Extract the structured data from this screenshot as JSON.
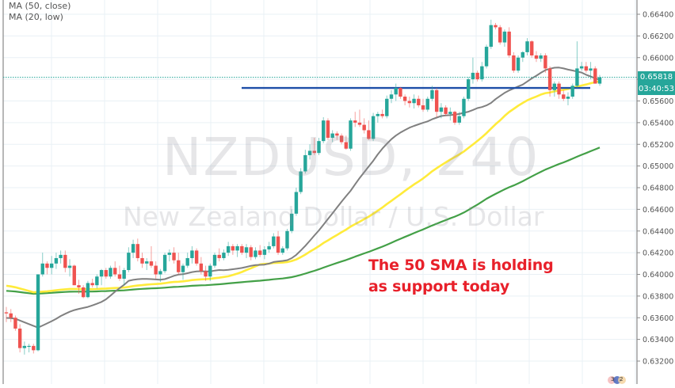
{
  "legend": {
    "ma50": "MA (50, close)",
    "ma20": "MA (20, low)"
  },
  "watermark": {
    "symbol": "NZDUSD, 240",
    "description": "New Zealand Dollar / U.S. Dollar"
  },
  "annotation": {
    "line1": "The 50 SMA is holding",
    "line2": "as support today"
  },
  "price_scale": {
    "last_price": "0.65818",
    "countdown": "03:40:53"
  },
  "colors": {
    "up": "#26a69a",
    "down": "#ef5350",
    "ma50": "#ffeb3b",
    "ma20": "#808080",
    "ma100": "#43a047",
    "support_line": "#1e4fa8",
    "grid": "#e9f0f5",
    "last_price_line": "#26a69a",
    "annotation": "#e8202a"
  },
  "chart_data": {
    "type": "candlestick",
    "title": "NZDUSD, 240",
    "subtitle": "New Zealand Dollar / U.S. Dollar",
    "xlabel": "",
    "ylabel": "",
    "ylim": [
      0.631,
      0.665
    ],
    "y_ticks": [
      "0.66400",
      "0.66200",
      "0.66000",
      "0.65800",
      "0.65600",
      "0.65400",
      "0.65200",
      "0.65000",
      "0.64800",
      "0.64600",
      "0.64400",
      "0.64200",
      "0.64000",
      "0.63800",
      "0.63600",
      "0.63400",
      "0.63200"
    ],
    "grid": true,
    "last_price": 0.65818,
    "support_level": 0.6572,
    "legend": [
      "MA (50, close)",
      "MA (20, low)"
    ],
    "annotation": "The 50 SMA is holding as support today",
    "ohlc": [
      [
        0.6365,
        0.637,
        0.6356,
        0.6364
      ],
      [
        0.6364,
        0.6368,
        0.6356,
        0.636
      ],
      [
        0.636,
        0.6362,
        0.6348,
        0.635
      ],
      [
        0.635,
        0.6354,
        0.6328,
        0.6332
      ],
      [
        0.6332,
        0.6338,
        0.6326,
        0.6334
      ],
      [
        0.6334,
        0.6336,
        0.6328,
        0.6334
      ],
      [
        0.6334,
        0.6336,
        0.6327,
        0.633
      ],
      [
        0.633,
        0.634,
        0.6329,
        0.64
      ],
      [
        0.64,
        0.642,
        0.6398,
        0.641
      ],
      [
        0.641,
        0.6412,
        0.64,
        0.6406
      ],
      [
        0.6406,
        0.6417,
        0.64,
        0.641
      ],
      [
        0.641,
        0.642,
        0.6405,
        0.6415
      ],
      [
        0.6415,
        0.6422,
        0.641,
        0.6418
      ],
      [
        0.6418,
        0.6422,
        0.6402,
        0.6406
      ],
      [
        0.6406,
        0.6414,
        0.6398,
        0.6408
      ],
      [
        0.6408,
        0.6409,
        0.639,
        0.639
      ],
      [
        0.639,
        0.6395,
        0.6382,
        0.6388
      ],
      [
        0.6388,
        0.639,
        0.6378,
        0.6379
      ],
      [
        0.6379,
        0.6394,
        0.6378,
        0.6392
      ],
      [
        0.6392,
        0.6396,
        0.6388,
        0.639
      ],
      [
        0.639,
        0.64,
        0.6387,
        0.6398
      ],
      [
        0.6398,
        0.6405,
        0.639,
        0.6404
      ],
      [
        0.6404,
        0.6406,
        0.6396,
        0.6398
      ],
      [
        0.6398,
        0.6408,
        0.6396,
        0.6406
      ],
      [
        0.6406,
        0.6412,
        0.6398,
        0.64
      ],
      [
        0.64,
        0.6408,
        0.6394,
        0.6396
      ],
      [
        0.6396,
        0.6406,
        0.639,
        0.6404
      ],
      [
        0.6404,
        0.6425,
        0.6402,
        0.642
      ],
      [
        0.642,
        0.6432,
        0.6415,
        0.6428
      ],
      [
        0.6428,
        0.6433,
        0.6412,
        0.6415
      ],
      [
        0.6415,
        0.642,
        0.6406,
        0.641
      ],
      [
        0.641,
        0.6415,
        0.6404,
        0.6412
      ],
      [
        0.6412,
        0.6426,
        0.6406,
        0.6408
      ],
      [
        0.6408,
        0.6412,
        0.6396,
        0.64
      ],
      [
        0.64,
        0.6405,
        0.6393,
        0.6403
      ],
      [
        0.6403,
        0.642,
        0.6401,
        0.6418
      ],
      [
        0.6418,
        0.6423,
        0.6412,
        0.642
      ],
      [
        0.642,
        0.6425,
        0.641,
        0.6413
      ],
      [
        0.6413,
        0.642,
        0.64,
        0.6402
      ],
      [
        0.6402,
        0.641,
        0.6395,
        0.6408
      ],
      [
        0.6408,
        0.642,
        0.6406,
        0.6415
      ],
      [
        0.6415,
        0.6426,
        0.641,
        0.6422
      ],
      [
        0.6422,
        0.6424,
        0.6408,
        0.641
      ],
      [
        0.641,
        0.6416,
        0.64,
        0.6403
      ],
      [
        0.6403,
        0.6408,
        0.6394,
        0.6398
      ],
      [
        0.6398,
        0.641,
        0.6394,
        0.6408
      ],
      [
        0.6408,
        0.642,
        0.6406,
        0.6418
      ],
      [
        0.6418,
        0.6424,
        0.6412,
        0.6415
      ],
      [
        0.6415,
        0.6423,
        0.6413,
        0.642
      ],
      [
        0.642,
        0.643,
        0.6417,
        0.6426
      ],
      [
        0.6426,
        0.6428,
        0.6418,
        0.6422
      ],
      [
        0.6422,
        0.6428,
        0.6416,
        0.6426
      ],
      [
        0.6426,
        0.6428,
        0.6418,
        0.642
      ],
      [
        0.642,
        0.6428,
        0.6415,
        0.6425
      ],
      [
        0.6425,
        0.6427,
        0.6413,
        0.6416
      ],
      [
        0.6416,
        0.6425,
        0.6414,
        0.6422
      ],
      [
        0.6422,
        0.6427,
        0.6416,
        0.6418
      ],
      [
        0.6418,
        0.6426,
        0.6414,
        0.6423
      ],
      [
        0.6423,
        0.643,
        0.642,
        0.6426
      ],
      [
        0.6426,
        0.6438,
        0.6424,
        0.6435
      ],
      [
        0.6435,
        0.644,
        0.6418,
        0.642
      ],
      [
        0.642,
        0.6426,
        0.6418,
        0.6424
      ],
      [
        0.6424,
        0.6442,
        0.6422,
        0.644
      ],
      [
        0.644,
        0.646,
        0.6438,
        0.6456
      ],
      [
        0.6456,
        0.648,
        0.6454,
        0.6476
      ],
      [
        0.6476,
        0.6498,
        0.6474,
        0.6495
      ],
      [
        0.6495,
        0.6515,
        0.6493,
        0.651
      ],
      [
        0.651,
        0.652,
        0.6506,
        0.6514
      ],
      [
        0.6514,
        0.6526,
        0.651,
        0.6512
      ],
      [
        0.6512,
        0.6526,
        0.651,
        0.6523
      ],
      [
        0.6523,
        0.6545,
        0.6521,
        0.6542
      ],
      [
        0.6542,
        0.6544,
        0.6524,
        0.6526
      ],
      [
        0.6526,
        0.6533,
        0.6522,
        0.653
      ],
      [
        0.653,
        0.6532,
        0.6524,
        0.6528
      ],
      [
        0.6528,
        0.653,
        0.652,
        0.6522
      ],
      [
        0.6522,
        0.6528,
        0.6515,
        0.6516
      ],
      [
        0.6516,
        0.6544,
        0.6514,
        0.6542
      ],
      [
        0.6542,
        0.655,
        0.6536,
        0.654
      ],
      [
        0.654,
        0.6552,
        0.6536,
        0.6538
      ],
      [
        0.6538,
        0.6544,
        0.653,
        0.6533
      ],
      [
        0.6533,
        0.6542,
        0.6524,
        0.6525
      ],
      [
        0.6525,
        0.6549,
        0.6523,
        0.6546
      ],
      [
        0.6546,
        0.655,
        0.654,
        0.6548
      ],
      [
        0.6548,
        0.6552,
        0.6544,
        0.6546
      ],
      [
        0.6546,
        0.6565,
        0.6544,
        0.6562
      ],
      [
        0.6562,
        0.657,
        0.6558,
        0.6566
      ],
      [
        0.6566,
        0.6576,
        0.656,
        0.6572
      ],
      [
        0.6572,
        0.6573,
        0.6562,
        0.6564
      ],
      [
        0.6564,
        0.6566,
        0.6556,
        0.656
      ],
      [
        0.656,
        0.6564,
        0.6554,
        0.6558
      ],
      [
        0.6558,
        0.6566,
        0.6553,
        0.6562
      ],
      [
        0.6562,
        0.6565,
        0.6554,
        0.6556
      ],
      [
        0.6556,
        0.6562,
        0.655,
        0.6552
      ],
      [
        0.6552,
        0.6564,
        0.655,
        0.6562
      ],
      [
        0.6562,
        0.6574,
        0.656,
        0.657
      ],
      [
        0.657,
        0.6572,
        0.6545,
        0.655
      ],
      [
        0.655,
        0.6558,
        0.6544,
        0.6554
      ],
      [
        0.6554,
        0.6556,
        0.6546,
        0.6548
      ],
      [
        0.6548,
        0.6554,
        0.6542,
        0.655
      ],
      [
        0.655,
        0.6551,
        0.6538,
        0.654
      ],
      [
        0.654,
        0.655,
        0.6538,
        0.6546
      ],
      [
        0.6546,
        0.6564,
        0.6544,
        0.6562
      ],
      [
        0.6562,
        0.6582,
        0.656,
        0.658
      ],
      [
        0.658,
        0.66,
        0.6576,
        0.6586
      ],
      [
        0.6586,
        0.6588,
        0.6578,
        0.658
      ],
      [
        0.658,
        0.6596,
        0.6578,
        0.6592
      ],
      [
        0.6592,
        0.6612,
        0.659,
        0.661
      ],
      [
        0.661,
        0.6635,
        0.6608,
        0.663
      ],
      [
        0.663,
        0.6632,
        0.6626,
        0.6628
      ],
      [
        0.6628,
        0.663,
        0.6612,
        0.6614
      ],
      [
        0.6614,
        0.6626,
        0.661,
        0.6624
      ],
      [
        0.6624,
        0.6628,
        0.66,
        0.6602
      ],
      [
        0.6602,
        0.6605,
        0.6586,
        0.6588
      ],
      [
        0.6588,
        0.6602,
        0.6586,
        0.66
      ],
      [
        0.66,
        0.6606,
        0.6596,
        0.6605
      ],
      [
        0.6605,
        0.6618,
        0.6602,
        0.6615
      ],
      [
        0.6615,
        0.6616,
        0.66,
        0.6602
      ],
      [
        0.6602,
        0.6606,
        0.6596,
        0.6599
      ],
      [
        0.6599,
        0.6604,
        0.6596,
        0.6602
      ],
      [
        0.6602,
        0.6604,
        0.6586,
        0.659
      ],
      [
        0.659,
        0.6592,
        0.6564,
        0.657
      ],
      [
        0.657,
        0.6578,
        0.6564,
        0.6576
      ],
      [
        0.6576,
        0.6578,
        0.6562,
        0.6566
      ],
      [
        0.6566,
        0.657,
        0.656,
        0.6562
      ],
      [
        0.6562,
        0.6568,
        0.6556,
        0.6564
      ],
      [
        0.6564,
        0.6576,
        0.6562,
        0.6574
      ],
      [
        0.6574,
        0.6615,
        0.6572,
        0.659
      ],
      [
        0.659,
        0.6596,
        0.6588,
        0.6592
      ],
      [
        0.6592,
        0.6596,
        0.6586,
        0.6588
      ],
      [
        0.6588,
        0.6596,
        0.658,
        0.659
      ],
      [
        0.659,
        0.6592,
        0.6576,
        0.6576
      ],
      [
        0.6576,
        0.6584,
        0.6574,
        0.65818
      ]
    ],
    "series": [
      {
        "name": "MA (50, close)",
        "color": "#ffeb3b"
      },
      {
        "name": "MA (20, low)",
        "color": "#808080"
      },
      {
        "name": "MA (100)",
        "color": "#43a047"
      }
    ]
  }
}
